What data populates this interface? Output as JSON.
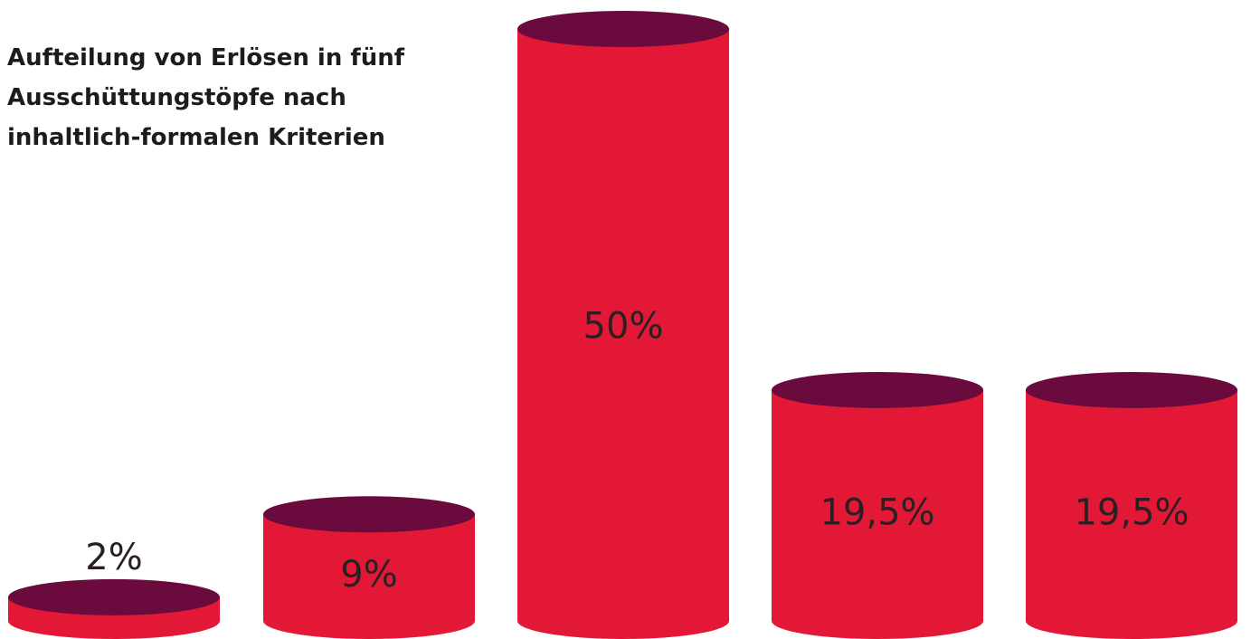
{
  "chart_data": {
    "type": "bar",
    "style": "3d-cylinder",
    "title_lines": [
      "Aufteilung von Erlösen in fünf",
      "Ausschüttungstöpfe nach",
      "inhaltlich-formalen Kriterien"
    ],
    "categories": [
      "",
      "",
      "",
      "",
      ""
    ],
    "values": [
      2,
      9,
      50,
      19.5,
      19.5
    ],
    "data_labels": [
      "2%",
      "9%",
      "50%",
      "19,5%",
      "19,5%"
    ],
    "unit": "%",
    "ylim": [
      0,
      50
    ],
    "grid": false,
    "legend": "none",
    "colors": {
      "body": "#e31836",
      "top": "#6b0a3c",
      "label": "#2a2022"
    }
  }
}
